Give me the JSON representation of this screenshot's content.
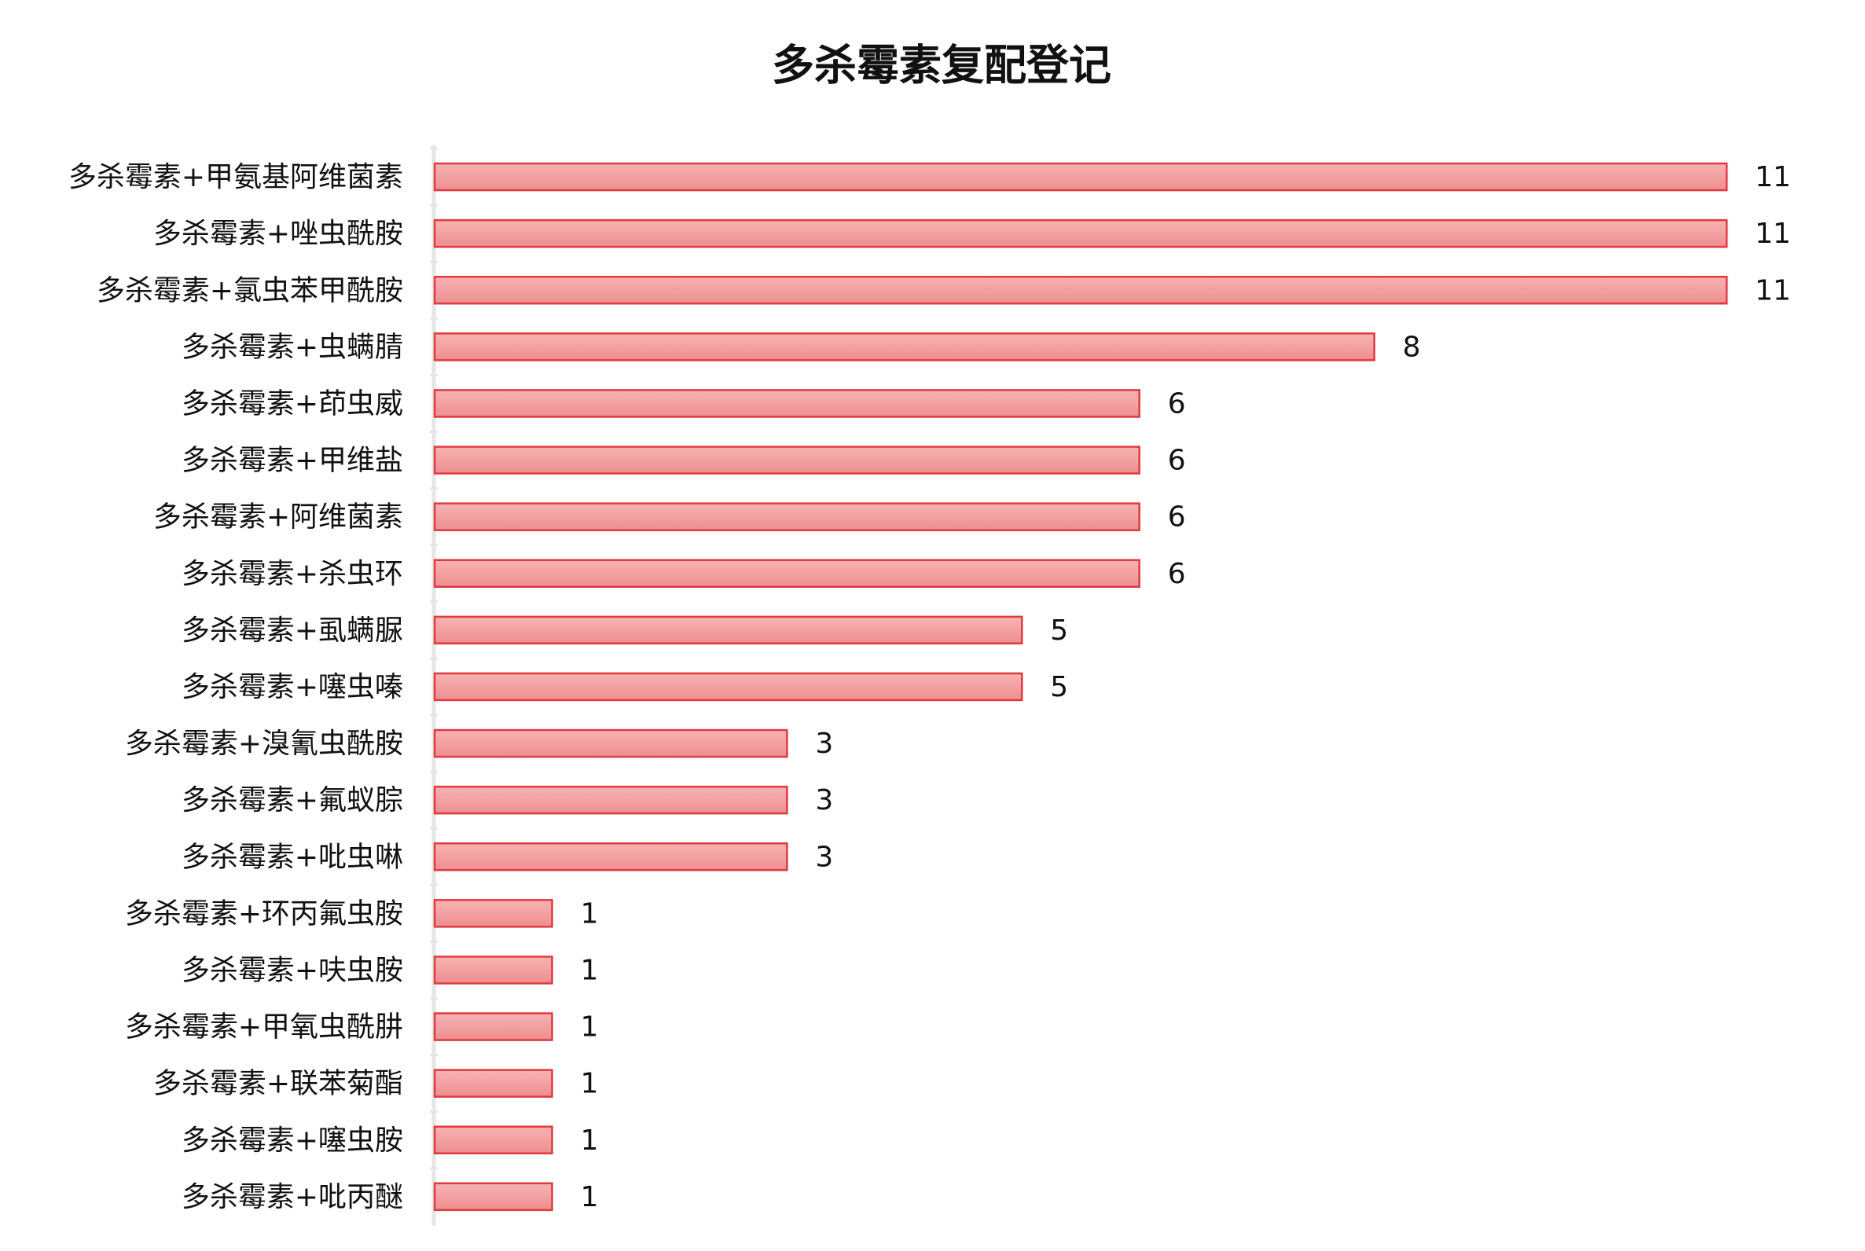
{
  "chart_data": {
    "type": "bar",
    "orientation": "horizontal",
    "title": "多杀霉素复配登记",
    "categories": [
      "多杀霉素+甲氨基阿维菌素",
      "多杀霉素+唑虫酰胺",
      "多杀霉素+氯虫苯甲酰胺",
      "多杀霉素+虫螨腈",
      "多杀霉素+茚虫威",
      "多杀霉素+甲维盐",
      "多杀霉素+阿维菌素",
      "多杀霉素+杀虫环",
      "多杀霉素+虱螨脲",
      "多杀霉素+噻虫嗪",
      "多杀霉素+溴氰虫酰胺",
      "多杀霉素+氟蚁腙",
      "多杀霉素+吡虫啉",
      "多杀霉素+环丙氟虫胺",
      "多杀霉素+呋虫胺",
      "多杀霉素+甲氧虫酰肼",
      "多杀霉素+联苯菊酯",
      "多杀霉素+噻虫胺",
      "多杀霉素+吡丙醚"
    ],
    "values": [
      11,
      11,
      11,
      8,
      6,
      6,
      6,
      6,
      5,
      5,
      3,
      3,
      3,
      1,
      1,
      1,
      1,
      1,
      1
    ],
    "color": "#e0393e",
    "xlim": [
      0,
      11
    ]
  }
}
